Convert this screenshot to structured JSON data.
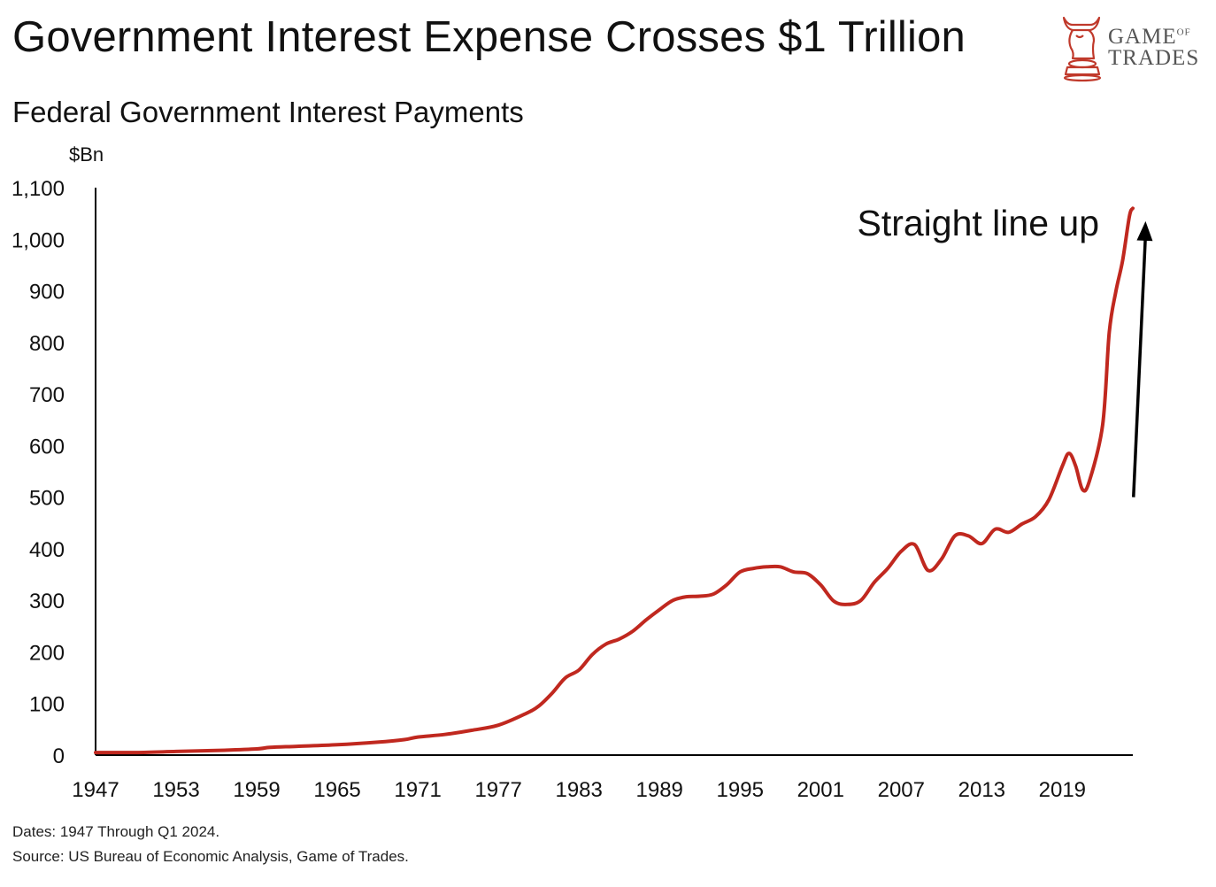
{
  "header": {
    "title": "Government Interest Expense Crosses $1 Trillion",
    "subtitle": "Federal Government Interest Payments"
  },
  "logo": {
    "line1": "GAME",
    "line1_suffix": "OF",
    "line2": "TRADES",
    "icon": "bull-chess-knight-icon",
    "color": "#c0392b"
  },
  "footer": {
    "dates_note": "Dates: 1947 Through Q1 2024.",
    "source_note": "Source: US Bureau of Economic Analysis, Game of Trades."
  },
  "chart_data": {
    "type": "line",
    "title": "Federal Government Interest Payments",
    "ylabel": "$Bn",
    "xlabel": "",
    "ylim": [
      0,
      1100
    ],
    "xlim": [
      1947,
      2024.25
    ],
    "y_ticks": [
      "0",
      "100",
      "200",
      "300",
      "400",
      "500",
      "600",
      "700",
      "800",
      "900",
      "1,000",
      "1,100"
    ],
    "y_tick_values": [
      0,
      100,
      200,
      300,
      400,
      500,
      600,
      700,
      800,
      900,
      1000,
      1100
    ],
    "x_ticks": [
      "1947",
      "1953",
      "1959",
      "1965",
      "1971",
      "1977",
      "1983",
      "1989",
      "1995",
      "2001",
      "2007",
      "2013",
      "2019"
    ],
    "x_tick_values": [
      1947,
      1953,
      1959,
      1965,
      1971,
      1977,
      1983,
      1989,
      1995,
      2001,
      2007,
      2013,
      2019
    ],
    "grid": false,
    "line_color": "#c0281f",
    "annotation": {
      "text": "Straight line up",
      "arrow_from": [
        2024.3,
        500
      ],
      "arrow_to": [
        2025.2,
        1035
      ]
    },
    "series": [
      {
        "x": [
          1947,
          1950,
          1953,
          1956,
          1959,
          1960,
          1962,
          1965,
          1968,
          1970,
          1971,
          1973,
          1975,
          1977,
          1979,
          1980,
          1981,
          1982,
          1983,
          1984,
          1985,
          1986,
          1987,
          1988,
          1989,
          1990,
          1991,
          1992,
          1993,
          1994,
          1995,
          1996,
          1997,
          1998,
          1999,
          2000,
          2001,
          2002,
          2003,
          2004,
          2005,
          2006,
          2007,
          2008,
          2009,
          2010,
          2011,
          2012,
          2013,
          2014,
          2015,
          2016,
          2017,
          2018,
          2019,
          2019.5,
          2020,
          2020.5,
          2021,
          2022,
          2022.5,
          2023,
          2023.5,
          2024,
          2024.25
        ],
        "values": [
          5,
          5,
          7,
          9,
          12,
          15,
          17,
          20,
          25,
          30,
          35,
          40,
          48,
          58,
          80,
          95,
          120,
          150,
          165,
          195,
          215,
          225,
          240,
          262,
          282,
          300,
          307,
          308,
          312,
          330,
          355,
          362,
          365,
          365,
          355,
          352,
          330,
          298,
          292,
          300,
          335,
          362,
          395,
          408,
          358,
          380,
          425,
          425,
          410,
          438,
          432,
          448,
          462,
          495,
          560,
          585,
          560,
          515,
          530,
          640,
          820,
          900,
          960,
          1045,
          1060
        ]
      }
    ]
  }
}
